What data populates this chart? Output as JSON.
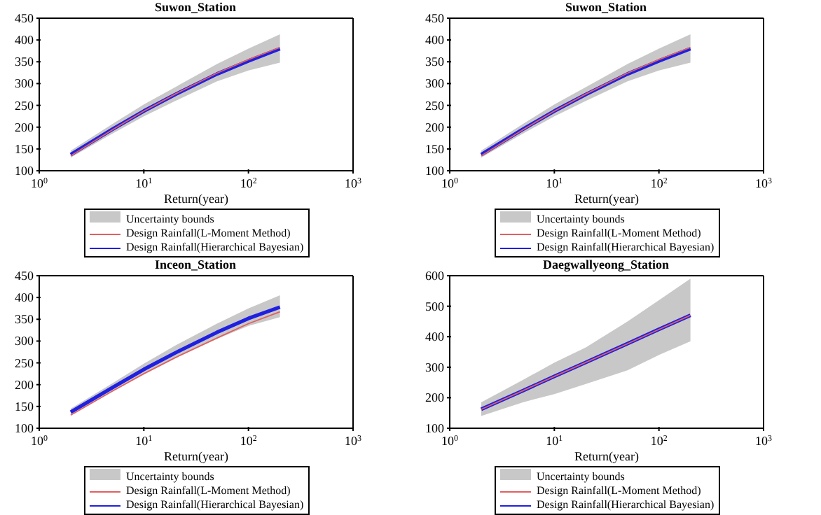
{
  "chart_data": [
    {
      "type": "line",
      "title": "Suwon_Station",
      "xlabel": "Return(year)",
      "log": "x",
      "x": [
        2,
        5,
        10,
        20,
        50,
        100,
        200
      ],
      "xlim": [
        1,
        1000
      ],
      "xticks": [
        {
          "value": 1,
          "label": "10$^{0}$"
        },
        {
          "value": 10,
          "label": "10$^{1}$"
        },
        {
          "value": 100,
          "label": "10$^{2}$"
        },
        {
          "value": 1000,
          "label": "10$^{3}$"
        }
      ],
      "ylim": [
        100,
        450
      ],
      "yticks": [
        100,
        150,
        200,
        250,
        300,
        350,
        400,
        450
      ],
      "grid": false,
      "legend": "bottom",
      "marker": "none",
      "line_style": "solid",
      "series": [
        {
          "name": "Uncertainty bounds",
          "type": "area",
          "color": "#c8c8c8",
          "values": [
            null,
            null,
            null,
            null,
            null,
            null,
            null
          ],
          "lower": [
            130,
            185,
            225,
            260,
            305,
            330,
            348
          ],
          "upper": [
            146,
            207,
            252,
            292,
            345,
            380,
            413
          ]
        },
        {
          "name": "Design Rainfall(L-Moment Method)",
          "color": "#e06060",
          "values": [
            134,
            194,
            237,
            276,
            324,
            355,
            383
          ]
        },
        {
          "name": "Design Rainfall(Hierarchical Bayesian)",
          "color": "#2020e0",
          "values": [
            137,
            195,
            237,
            275,
            322,
            352,
            380
          ]
        }
      ]
    },
    {
      "type": "line",
      "title": "Suwon_Station",
      "xlabel": "Return(year)",
      "log": "x",
      "x": [
        2,
        5,
        10,
        20,
        50,
        100,
        200
      ],
      "xlim": [
        1,
        1000
      ],
      "xticks": [
        {
          "value": 1,
          "label": "10$^{0}$"
        },
        {
          "value": 10,
          "label": "10$^{1}$"
        },
        {
          "value": 100,
          "label": "10$^{2}$"
        },
        {
          "value": 1000,
          "label": "10$^{3}$"
        }
      ],
      "ylim": [
        100,
        450
      ],
      "yticks": [
        100,
        150,
        200,
        250,
        300,
        350,
        400,
        450
      ],
      "grid": false,
      "legend": "bottom",
      "marker": "none",
      "line_style": "solid",
      "series": [
        {
          "name": "Uncertainty bounds",
          "type": "area",
          "color": "#c8c8c8",
          "values": [
            null,
            null,
            null,
            null,
            null,
            null,
            null
          ],
          "lower": [
            130,
            185,
            225,
            260,
            305,
            330,
            348
          ],
          "upper": [
            146,
            207,
            252,
            292,
            345,
            380,
            413
          ]
        },
        {
          "name": "Design Rainfall(L-Moment Method)",
          "color": "#e06060",
          "values": [
            134,
            194,
            237,
            276,
            324,
            355,
            383
          ]
        },
        {
          "name": "Design Rainfall(Hierarchical Bayesian)",
          "color": "#2020e0",
          "values": [
            137,
            195,
            237,
            275,
            322,
            352,
            380
          ]
        }
      ]
    },
    {
      "type": "line",
      "title": "Inceon_Station",
      "xlabel": "Return(year)",
      "log": "x",
      "x": [
        2,
        5,
        10,
        20,
        50,
        100,
        200
      ],
      "xlim": [
        1,
        1000
      ],
      "xticks": [
        {
          "value": 1,
          "label": "10$^{0}$"
        },
        {
          "value": 10,
          "label": "10$^{1}$"
        },
        {
          "value": 100,
          "label": "10$^{2}$"
        },
        {
          "value": 1000,
          "label": "10$^{3}$"
        }
      ],
      "ylim": [
        100,
        450
      ],
      "yticks": [
        100,
        150,
        200,
        250,
        300,
        350,
        400,
        450
      ],
      "grid": false,
      "legend": "bottom",
      "marker": "none",
      "line_style": "solid",
      "series": [
        {
          "name": "Uncertainty bounds",
          "type": "area",
          "color": "#c8c8c8",
          "values": [
            null,
            null,
            null,
            null,
            null,
            null,
            null
          ],
          "lower": [
            132,
            185,
            225,
            262,
            305,
            335,
            355
          ],
          "upper": [
            145,
            203,
            248,
            290,
            340,
            375,
            405
          ]
        },
        {
          "name": "Design Rainfall(L-Moment Method)",
          "color": "#e06060",
          "values": [
            130,
            185,
            225,
            262,
            307,
            340,
            367
          ]
        },
        {
          "name": "Design Rainfall(Hierarchical Bayesian)",
          "color": "#2020e0",
          "values": [
            137,
            193,
            235,
            273,
            320,
            352,
            378
          ]
        }
      ]
    },
    {
      "type": "line",
      "title": "Daegwallyeong_Station",
      "xlabel": "Return(year)",
      "log": "x",
      "x": [
        2,
        5,
        10,
        20,
        50,
        100,
        200
      ],
      "xlim": [
        1,
        1000
      ],
      "xticks": [
        {
          "value": 1,
          "label": "10$^{0}$"
        },
        {
          "value": 10,
          "label": "10$^{1}$"
        },
        {
          "value": 100,
          "label": "10$^{2}$"
        },
        {
          "value": 1000,
          "label": "10$^{3}$"
        }
      ],
      "ylim": [
        100,
        600
      ],
      "yticks": [
        100,
        200,
        300,
        400,
        500,
        600
      ],
      "grid": false,
      "legend": "bottom",
      "marker": "none",
      "line_style": "solid",
      "series": [
        {
          "name": "Uncertainty bounds",
          "type": "area",
          "color": "#c8c8c8",
          "values": [
            null,
            null,
            null,
            null,
            null,
            null,
            null
          ],
          "lower": [
            140,
            185,
            212,
            245,
            290,
            340,
            385
          ],
          "upper": [
            185,
            258,
            315,
            365,
            450,
            520,
            590
          ]
        },
        {
          "name": "Design Rainfall(L-Moment Method)",
          "color": "#e06060",
          "values": [
            162,
            223,
            270,
            316,
            377,
            424,
            470
          ]
        },
        {
          "name": "Design Rainfall(Hierarchical Bayesian)",
          "color": "#2020e0",
          "values": [
            162,
            223,
            270,
            316,
            377,
            424,
            470
          ]
        }
      ]
    }
  ]
}
